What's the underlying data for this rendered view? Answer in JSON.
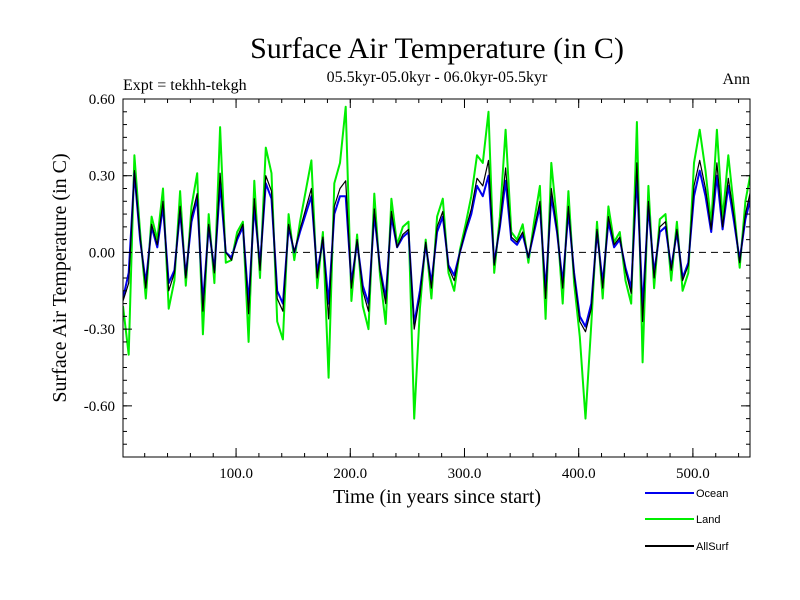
{
  "chart_data": {
    "type": "line",
    "title": "Surface Air Temperature (in C)",
    "subtitle": "05.5kyr-05.0kyr - 06.0kyr-05.5kyr",
    "left_label": "Expt = tekhh-tekgh",
    "right_label": "Ann",
    "xlabel": "Time (in years since start)",
    "ylabel": "Surface Air Temperature (in C)",
    "xlim": [
      1,
      550
    ],
    "ylim": [
      -0.8,
      0.6
    ],
    "x_ticks": [
      100,
      200,
      300,
      400,
      500
    ],
    "x_tick_labels": [
      "100.0",
      "200.0",
      "300.0",
      "400.0",
      "500.0"
    ],
    "y_ticks": [
      0.6,
      0.3,
      0.0,
      -0.3,
      -0.6
    ],
    "y_tick_labels": [
      "0.60",
      "0.30",
      "0.00",
      "-0.30",
      "-0.60"
    ],
    "zero_line": 0.0,
    "legend_position": "bottom-right, outside plot",
    "series": [
      {
        "name": "Land",
        "color": "#00ee00",
        "x_step": 5,
        "values": [
          -0.21,
          -0.4,
          0.38,
          0.08,
          -0.18,
          0.14,
          0.05,
          0.25,
          -0.22,
          -0.11,
          0.24,
          -0.13,
          0.18,
          0.31,
          -0.32,
          0.15,
          -0.12,
          0.49,
          -0.04,
          -0.03,
          0.08,
          0.12,
          -0.35,
          0.28,
          -0.1,
          0.41,
          0.31,
          -0.27,
          -0.34,
          0.15,
          -0.03,
          0.12,
          0.24,
          0.36,
          -0.14,
          0.08,
          -0.49,
          0.27,
          0.35,
          0.57,
          -0.19,
          0.07,
          -0.21,
          -0.3,
          0.23,
          -0.09,
          -0.28,
          0.21,
          0.03,
          0.1,
          0.12,
          -0.65,
          -0.22,
          0.05,
          -0.18,
          0.14,
          0.21,
          -0.08,
          -0.15,
          0.01,
          0.11,
          0.22,
          0.38,
          0.35,
          0.55,
          -0.08,
          0.14,
          0.48,
          0.08,
          0.05,
          0.11,
          -0.04,
          0.12,
          0.26,
          -0.26,
          0.35,
          0.12,
          -0.2,
          0.24,
          -0.12,
          -0.33,
          -0.65,
          -0.28,
          0.12,
          -0.18,
          0.18,
          0.04,
          0.08,
          -0.11,
          -0.2,
          0.51,
          -0.43,
          0.26,
          -0.14,
          0.13,
          0.15,
          -0.11,
          0.12,
          -0.15,
          -0.08,
          0.35,
          0.48,
          0.32,
          0.11,
          0.48,
          0.13,
          0.38,
          0.17,
          -0.06,
          0.2,
          0.32,
          0.05
        ]
      },
      {
        "name": "Ocean",
        "color": "#0000ee",
        "x_step": 5,
        "values": [
          -0.18,
          -0.08,
          0.31,
          0.05,
          -0.12,
          0.1,
          0.02,
          0.18,
          -0.12,
          -0.07,
          0.16,
          -0.09,
          0.12,
          0.21,
          -0.2,
          0.1,
          -0.07,
          0.27,
          0.0,
          -0.02,
          0.05,
          0.1,
          -0.2,
          0.18,
          -0.05,
          0.27,
          0.21,
          -0.15,
          -0.2,
          0.1,
          0.0,
          0.08,
          0.15,
          0.22,
          -0.08,
          0.05,
          -0.2,
          0.15,
          0.22,
          0.22,
          -0.12,
          0.04,
          -0.13,
          -0.2,
          0.15,
          -0.06,
          -0.18,
          0.14,
          0.02,
          0.06,
          0.08,
          -0.28,
          -0.15,
          0.03,
          -0.12,
          0.08,
          0.14,
          -0.05,
          -0.09,
          0.0,
          0.08,
          0.15,
          0.26,
          0.22,
          0.3,
          -0.04,
          0.1,
          0.28,
          0.05,
          0.03,
          0.07,
          -0.02,
          0.08,
          0.18,
          -0.15,
          0.22,
          0.08,
          -0.12,
          0.16,
          -0.08,
          -0.25,
          -0.29,
          -0.2,
          0.08,
          -0.12,
          0.12,
          0.02,
          0.05,
          -0.06,
          -0.14,
          0.3,
          -0.22,
          0.18,
          -0.08,
          0.08,
          0.1,
          -0.06,
          0.08,
          -0.1,
          -0.04,
          0.22,
          0.32,
          0.22,
          0.08,
          0.3,
          0.09,
          0.26,
          0.12,
          -0.03,
          0.13,
          0.22,
          0.08
        ]
      },
      {
        "name": "AllSurf",
        "color": "#000000",
        "x_step": 5,
        "values": [
          -0.19,
          -0.12,
          0.32,
          0.06,
          -0.14,
          0.11,
          0.03,
          0.2,
          -0.15,
          -0.08,
          0.18,
          -0.1,
          0.14,
          0.23,
          -0.23,
          0.11,
          -0.08,
          0.31,
          0.0,
          -0.03,
          0.06,
          0.11,
          -0.24,
          0.21,
          -0.07,
          0.3,
          0.24,
          -0.18,
          -0.23,
          0.11,
          0.0,
          0.09,
          0.17,
          0.25,
          -0.1,
          0.06,
          -0.26,
          0.18,
          0.25,
          0.28,
          -0.14,
          0.05,
          -0.15,
          -0.23,
          0.17,
          -0.07,
          -0.2,
          0.16,
          0.02,
          0.07,
          0.09,
          -0.3,
          -0.17,
          0.04,
          -0.14,
          0.1,
          0.16,
          -0.06,
          -0.11,
          0.0,
          0.09,
          0.17,
          0.29,
          0.26,
          0.36,
          -0.05,
          0.11,
          0.33,
          0.06,
          0.04,
          0.08,
          -0.02,
          0.09,
          0.2,
          -0.18,
          0.25,
          0.09,
          -0.14,
          0.18,
          -0.09,
          -0.27,
          -0.31,
          -0.22,
          0.09,
          -0.14,
          0.14,
          0.03,
          0.06,
          -0.07,
          -0.16,
          0.35,
          -0.27,
          0.2,
          -0.1,
          0.1,
          0.12,
          -0.07,
          0.09,
          -0.11,
          -0.05,
          0.26,
          0.36,
          0.25,
          0.09,
          0.35,
          0.1,
          0.29,
          0.14,
          -0.04,
          0.15,
          0.25,
          0.08
        ]
      }
    ],
    "legend": [
      {
        "label": "Ocean",
        "color": "#0000ee"
      },
      {
        "label": "Land",
        "color": "#00ee00"
      },
      {
        "label": "AllSurf",
        "color": "#000000"
      }
    ]
  }
}
